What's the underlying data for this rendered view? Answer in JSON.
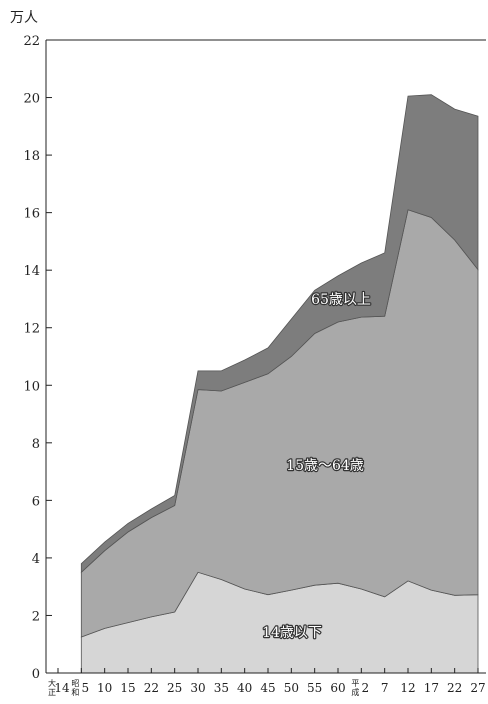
{
  "chart_data": {
    "type": "area",
    "stacked": true,
    "ylabel": "万人",
    "ylim": [
      0,
      22
    ],
    "yticks": [
      "0",
      "2",
      "4",
      "6",
      "8",
      "10",
      "12",
      "14",
      "16",
      "18",
      "20",
      "22"
    ],
    "x": [
      "大正14",
      "昭和5",
      "10",
      "15",
      "22",
      "25",
      "30",
      "35",
      "40",
      "45",
      "50",
      "55",
      "60",
      "平成2",
      "7",
      "12",
      "17",
      "22",
      "27"
    ],
    "x_tick_labels": [
      {
        "era": "大正",
        "label": "14"
      },
      {
        "era": "昭和",
        "label": "5"
      },
      {
        "era": "",
        "label": "10"
      },
      {
        "era": "",
        "label": "15"
      },
      {
        "era": "",
        "label": "22"
      },
      {
        "era": "",
        "label": "25"
      },
      {
        "era": "",
        "label": "30"
      },
      {
        "era": "",
        "label": "35"
      },
      {
        "era": "",
        "label": "40"
      },
      {
        "era": "",
        "label": "45"
      },
      {
        "era": "",
        "label": "50"
      },
      {
        "era": "",
        "label": "55"
      },
      {
        "era": "",
        "label": "60"
      },
      {
        "era": "平成",
        "label": "2"
      },
      {
        "era": "",
        "label": "7"
      },
      {
        "era": "",
        "label": "12"
      },
      {
        "era": "",
        "label": "17"
      },
      {
        "era": "",
        "label": "22"
      },
      {
        "era": "",
        "label": "27"
      }
    ],
    "series": [
      {
        "name": "14歳以下",
        "color": "#d6d6d6",
        "values": [
          null,
          1.25,
          1.55,
          1.75,
          1.95,
          2.12,
          3.5,
          3.25,
          2.92,
          2.72,
          2.88,
          3.05,
          3.12,
          2.92,
          2.65,
          3.2,
          2.88,
          2.7,
          2.72
        ]
      },
      {
        "name": "15歳～64歳",
        "color": "#a9a9a9",
        "values": [
          null,
          2.25,
          2.7,
          3.15,
          3.45,
          3.7,
          6.35,
          6.55,
          7.18,
          7.68,
          8.12,
          8.75,
          9.08,
          9.45,
          9.75,
          12.9,
          12.95,
          12.35,
          11.3
        ]
      },
      {
        "name": "65歳以上",
        "color": "#7d7d7d",
        "values": [
          null,
          0.3,
          0.3,
          0.3,
          0.3,
          0.35,
          0.65,
          0.7,
          0.78,
          0.9,
          1.3,
          1.5,
          1.6,
          1.88,
          2.2,
          3.95,
          4.27,
          4.55,
          5.33
        ]
      }
    ],
    "grid": false,
    "legend": "none (labels drawn inside the areas)"
  }
}
